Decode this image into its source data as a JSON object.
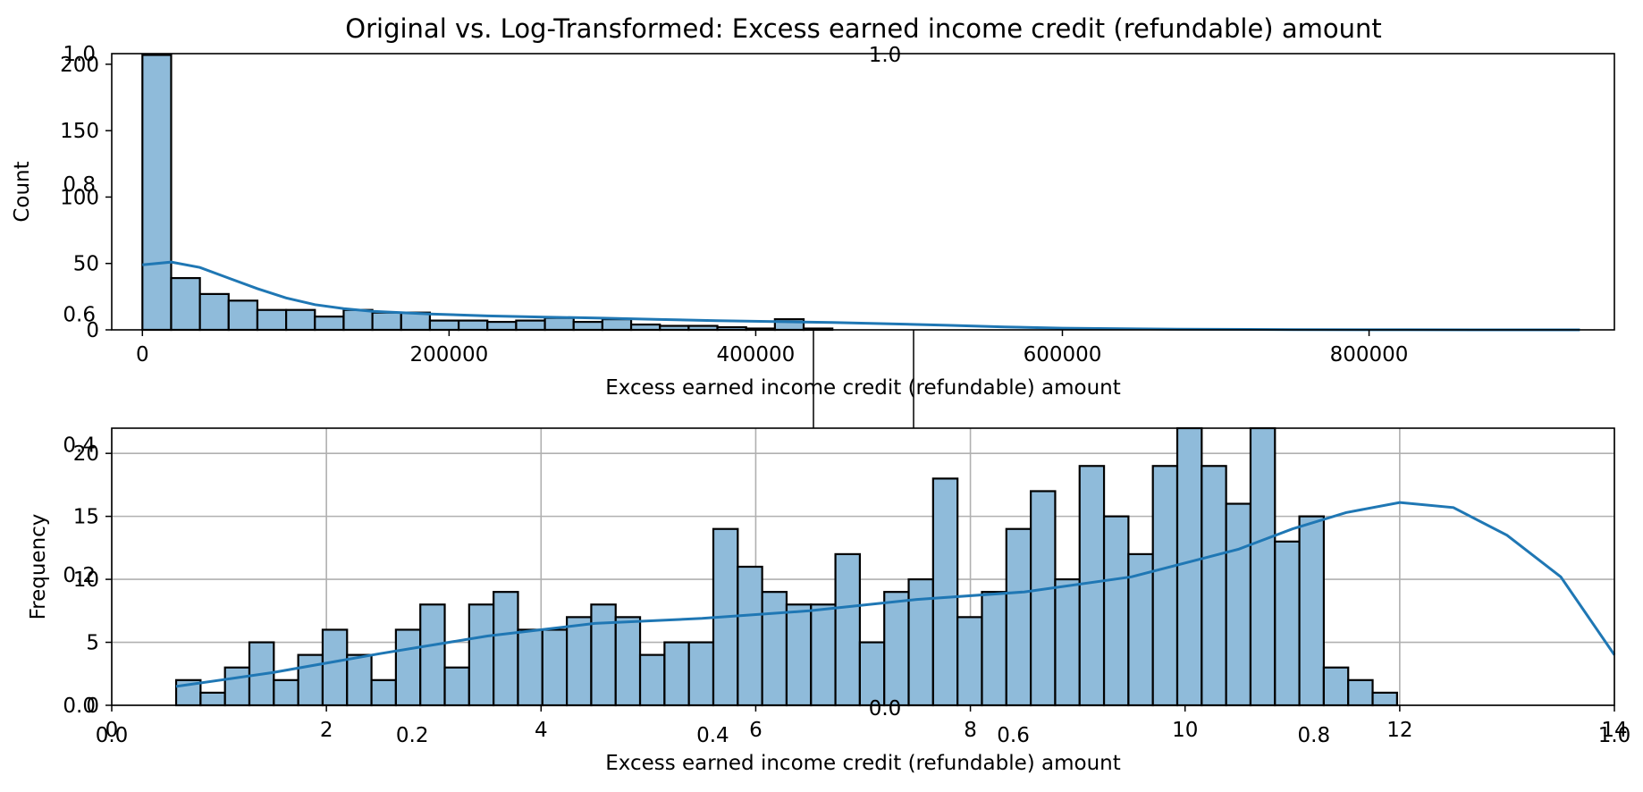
{
  "figure": {
    "title": "Original vs. Log-Transformed: Excess earned income credit (refundable) amount",
    "bar_fill": "#8fbbda",
    "bar_edge": "#000000",
    "kde_color": "#1f77b4",
    "grid_color": "#b0b0b0",
    "overlay_ticks": {
      "y": [
        "0.0",
        "0.2",
        "0.4",
        "0.6",
        "0.8",
        "1.0"
      ],
      "x": [
        "0.0",
        "0.2",
        "0.4",
        "0.6",
        "0.8",
        "1.0"
      ],
      "stray_top": "1.0",
      "stray_middle": "0.0"
    }
  },
  "chart_data": [
    {
      "type": "histogram",
      "title": "",
      "xlabel": "Excess earned income credit (refundable) amount",
      "ylabel": "Count",
      "xlim": [
        -20000,
        960000
      ],
      "ylim": [
        0,
        208
      ],
      "grid": false,
      "x_ticks": [
        0,
        200000,
        400000,
        600000,
        800000
      ],
      "y_ticks": [
        0,
        50,
        100,
        150,
        200
      ],
      "bin_start": 0,
      "bin_width": 18750,
      "counts": [
        207,
        39,
        27,
        22,
        15,
        15,
        10,
        15,
        13,
        13,
        7,
        7,
        6,
        7,
        9,
        6,
        8,
        4,
        3,
        3,
        2,
        1,
        1,
        1,
        0,
        0,
        0,
        0,
        0,
        0,
        0,
        0,
        0,
        0,
        0,
        0,
        0,
        0,
        0,
        0,
        0,
        0,
        0,
        0,
        0,
        0,
        0,
        0,
        0,
        0
      ],
      "overrides": {
        "22": 8
      },
      "kde": {
        "x": [
          0,
          18750,
          37500,
          56250,
          75000,
          93750,
          112500,
          131250,
          150000,
          187500,
          225000,
          262500,
          300000,
          337500,
          375000,
          412500,
          450000,
          487500,
          525000,
          562500,
          600000,
          675000,
          750000,
          825000,
          900000,
          937500
        ],
        "y": [
          49,
          51,
          47,
          39,
          31,
          24,
          19,
          16,
          14,
          12,
          10.5,
          9.6,
          8.8,
          7.8,
          6.9,
          6.2,
          5.6,
          4.6,
          3.4,
          2.2,
          1.3,
          0.5,
          0.2,
          0.05,
          0.01,
          0
        ]
      }
    },
    {
      "type": "histogram",
      "title": "",
      "xlabel": "Excess earned income credit (refundable) amount",
      "ylabel": "Frequency",
      "xlim": [
        0,
        14
      ],
      "ylim": [
        0,
        22
      ],
      "grid": true,
      "x_ticks": [
        0,
        2,
        4,
        6,
        8,
        10,
        12,
        14
      ],
      "y_ticks": [
        0,
        5,
        10,
        15,
        20
      ],
      "bin_start": 0.6,
      "bin_width": 0.2275,
      "counts": [
        2,
        1,
        3,
        5,
        2,
        4,
        6,
        4,
        2,
        6,
        8,
        3,
        8,
        9,
        6,
        6,
        7,
        8,
        7,
        4,
        5,
        5,
        14,
        11,
        9,
        8,
        8,
        12,
        5,
        9,
        10,
        18,
        7,
        9,
        14,
        17,
        10,
        19,
        15,
        12,
        19,
        22,
        19,
        16,
        22,
        13,
        15,
        3,
        2,
        1
      ],
      "kde": {
        "x": [
          0.6,
          1.5,
          2.5,
          3.5,
          4.5,
          5.5,
          6.5,
          7.5,
          8.5,
          9.5,
          10.5,
          11.0,
          11.5,
          12.0,
          12.5,
          13.0,
          13.5,
          14.0
        ],
        "y": [
          1.5,
          2.6,
          4.1,
          5.5,
          6.5,
          6.9,
          7.5,
          8.4,
          9.0,
          10.2,
          12.4,
          14.0,
          15.3,
          16.1,
          15.7,
          13.5,
          10.2,
          4.0
        ]
      }
    }
  ]
}
